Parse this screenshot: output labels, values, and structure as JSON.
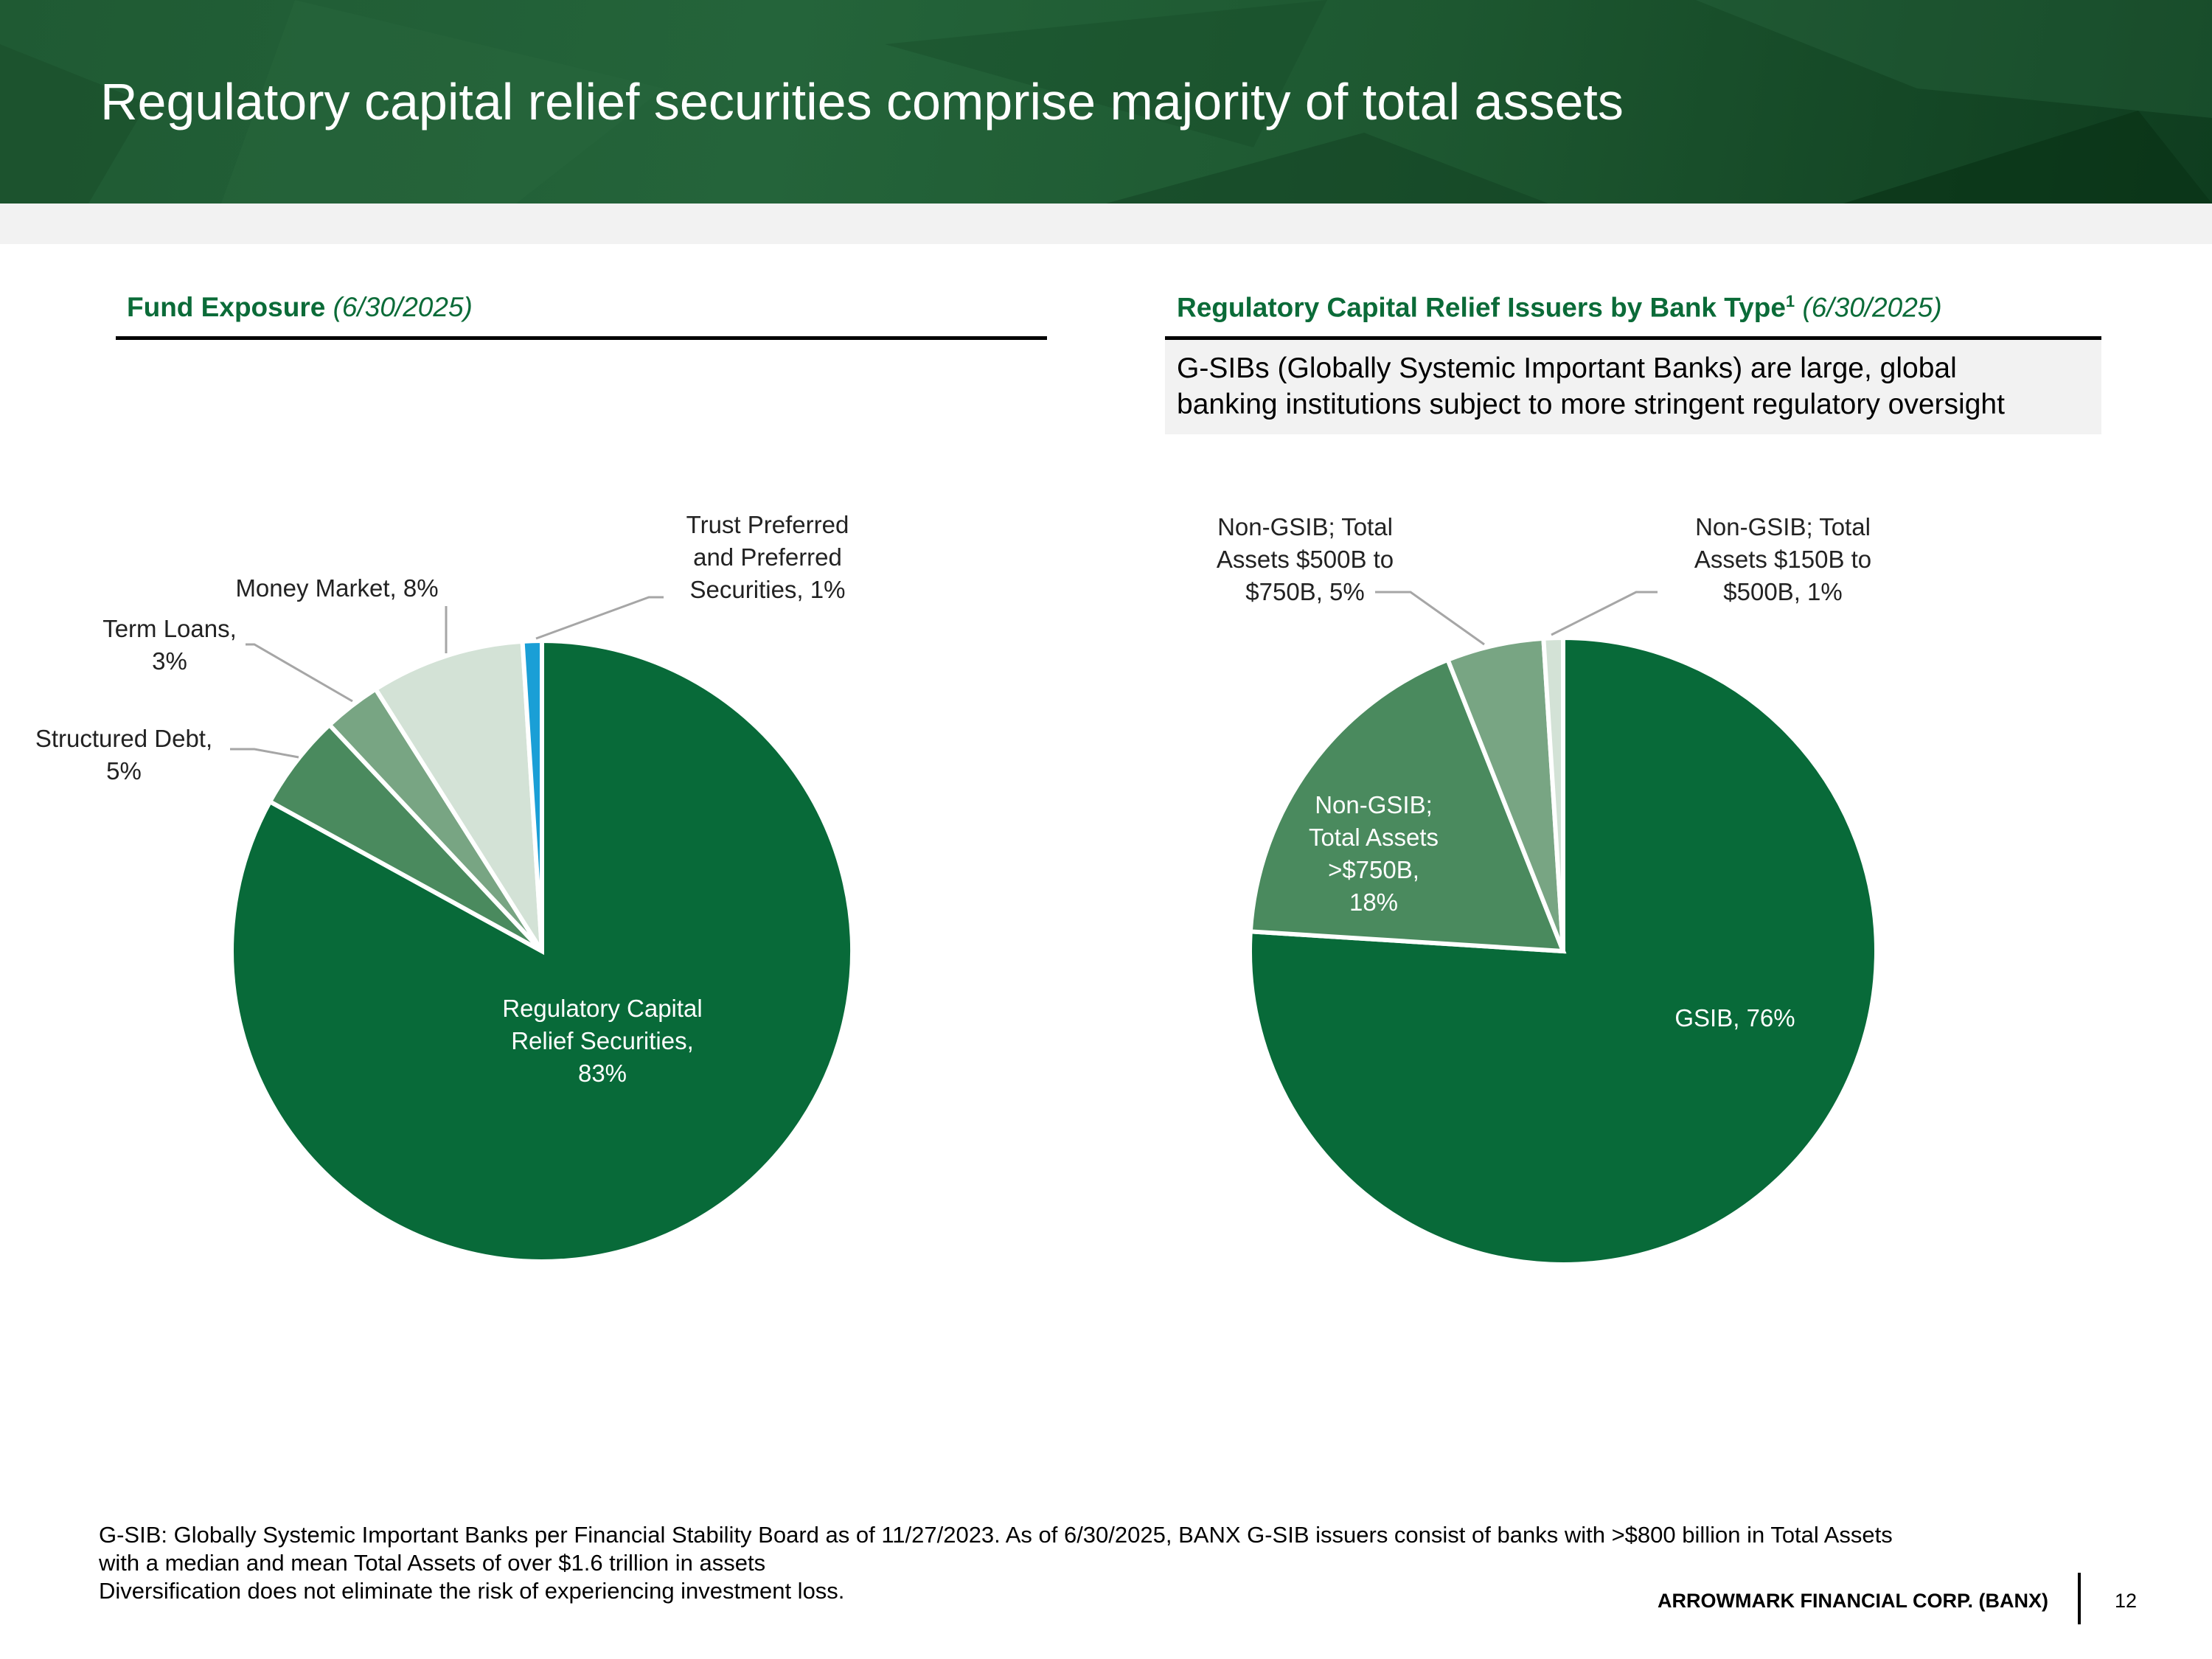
{
  "header": {
    "title": "Regulatory capital relief securities comprise majority of total assets"
  },
  "left": {
    "heading": "Fund Exposure",
    "heading_date": "(6/30/2025)"
  },
  "right": {
    "heading": "Regulatory Capital Relief Issuers by Bank Type",
    "heading_sup": "1",
    "heading_date": "(6/30/2025)",
    "info_line1": "G-SIBs (Globally Systemic Important Banks) are large, global",
    "info_line2": "banking institutions subject to more stringent regulatory oversight"
  },
  "chart_data": [
    {
      "type": "pie",
      "title": "Fund Exposure (6/30/2025)",
      "start": "top",
      "direction": "clockwise",
      "slices": [
        {
          "label": "Regulatory Capital Relief Securities, 83%",
          "lines": [
            "Regulatory Capital",
            "Relief Securities,",
            "83%"
          ],
          "value": 83,
          "color": "#086a39"
        },
        {
          "label": "Structured Debt, 5%",
          "lines": [
            "Structured Debt,",
            "5%"
          ],
          "value": 5,
          "color": "#4a8a5e"
        },
        {
          "label": "Term Loans, 3%",
          "lines": [
            "Term Loans,",
            "3%"
          ],
          "value": 3,
          "color": "#78a583"
        },
        {
          "label": "Money Market, 8%",
          "lines": [
            "Money Market, 8%"
          ],
          "value": 8,
          "color": "#d3e2d6"
        },
        {
          "label": "Trust Preferred and Preferred Securities, 1%",
          "lines": [
            "Trust Preferred",
            "and Preferred",
            "Securities, 1%"
          ],
          "value": 1,
          "color": "#1a9fd6"
        }
      ]
    },
    {
      "type": "pie",
      "title": "Regulatory Capital Relief Issuers by Bank Type (6/30/2025)",
      "start": "top",
      "direction": "clockwise",
      "slices": [
        {
          "label": "GSIB, 76%",
          "lines": [
            "GSIB, 76%"
          ],
          "value": 76,
          "color": "#086a39"
        },
        {
          "label": "Non-GSIB; Total Assets >$750B, 18%",
          "lines": [
            "Non-GSIB;",
            "Total Assets",
            ">$750B,",
            "18%"
          ],
          "value": 18,
          "color": "#4a8a5e"
        },
        {
          "label": "Non-GSIB; Total Assets $500B to $750B, 5%",
          "lines": [
            "Non-GSIB; Total",
            "Assets $500B to",
            "$750B, 5%"
          ],
          "value": 5,
          "color": "#78a583"
        },
        {
          "label": "Non-GSIB; Total Assets $150B to $500B, 1%",
          "lines": [
            "Non-GSIB; Total",
            "Assets $150B to",
            "$500B, 1%"
          ],
          "value": 1,
          "color": "#d3e2d6"
        }
      ]
    }
  ],
  "footer": {
    "note1": "G-SIB:  Globally Systemic Important Banks per Financial Stability Board as of 11/27/2023. As of 6/30/2025, BANX G-SIB issuers consist of banks with >$800 billion in Total Assets",
    "note2": "with a median and mean Total Assets of over $1.6 trillion in assets",
    "note3": "Diversification does not eliminate the risk of experiencing investment loss.",
    "company": "ARROWMARK FINANCIAL CORP. (BANX)",
    "page": "12"
  }
}
